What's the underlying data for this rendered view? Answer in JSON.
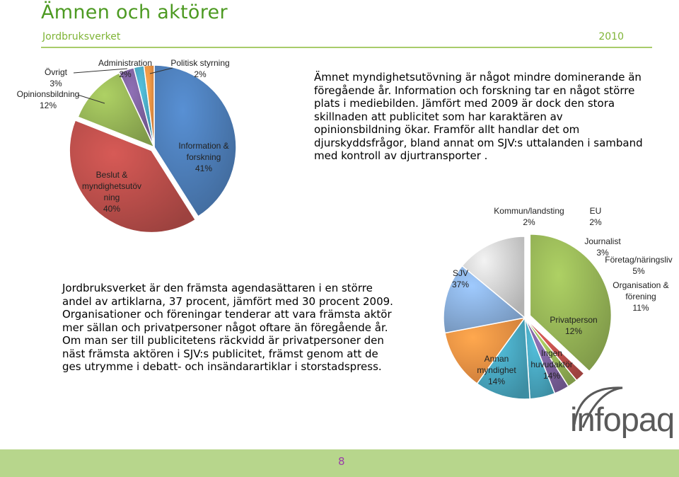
{
  "header": {
    "title": "Ämnen och aktörer",
    "subtitle": "Jordbruksverket",
    "year": "2010",
    "accent": "#4d9a22"
  },
  "text1": "Ämnet myndighetsutövning är något mindre dominerande än föregående år. Information och forskning tar en något större plats i mediebilden. Jämfört med 2009 är dock den stora skillnaden att publicitet som har karaktären av opinionsbildning ökar. Framför allt handlar det om djurskyddsfrågor, bland annat om SJV:s uttalanden i samband med kontroll av djurtransporter .",
  "text2": "Jordbruksverket är den främsta agendasättaren i en större andel av artiklarna, 37 procent, jämfört med 30 procent 2009. Organisationer och föreningar tenderar att vara främsta aktör mer sällan och privatpersoner något oftare än föregående år. Om man ser till publicitetens räckvidd är privatpersoner den näst främsta aktören i SJV:s publicitet, främst genom att de ges utrymme i debatt- och insändarartiklar i storstadspress.",
  "footer": {
    "page": "8"
  },
  "logo": "infopaq",
  "chart_data": [
    {
      "type": "pie",
      "title": "",
      "slices": [
        {
          "label": "Information & forskning",
          "value": 41,
          "display": "41%",
          "color": "#4f81bd"
        },
        {
          "label": "Beslut & myndighetsutövning",
          "value": 40,
          "display": "40%",
          "color": "#c0504d"
        },
        {
          "label": "Opinionsbildning",
          "value": 12,
          "display": "12%",
          "color": "#9bbb59"
        },
        {
          "label": "Övrigt",
          "value": 3,
          "display": "3%",
          "color": "#8064a2"
        },
        {
          "label": "Administration",
          "value": 2,
          "display": "2%",
          "color": "#4bacc6"
        },
        {
          "label": "Politisk styrning",
          "value": 2,
          "display": "2%",
          "color": "#f79646"
        }
      ]
    },
    {
      "type": "pie",
      "title": "",
      "slices": [
        {
          "label": "SJV",
          "value": 37,
          "display": "37%",
          "color": "#9bbb59"
        },
        {
          "label": "Kommun/landsting",
          "value": 2,
          "display": "2%",
          "color": "#c0504d"
        },
        {
          "label": "EU",
          "value": 2,
          "display": "2%",
          "color": "#9bbb59"
        },
        {
          "label": "Journalist",
          "value": 3,
          "display": "3%",
          "color": "#8064a2"
        },
        {
          "label": "Företag/näringsliv",
          "value": 5,
          "display": "5%",
          "color": "#4bacc6"
        },
        {
          "label": "Organisation & förening",
          "value": 11,
          "display": "11%",
          "color": "#4bacc6"
        },
        {
          "label": "Privatperson",
          "value": 12,
          "display": "12%",
          "color": "#f79646"
        },
        {
          "label": "Ingen huvudaktör",
          "value": 14,
          "display": "14%",
          "color": "#8eb4e3"
        },
        {
          "label": "Annan myndighet",
          "value": 14,
          "display": "14%",
          "color": "#d9d9d9"
        }
      ]
    }
  ]
}
